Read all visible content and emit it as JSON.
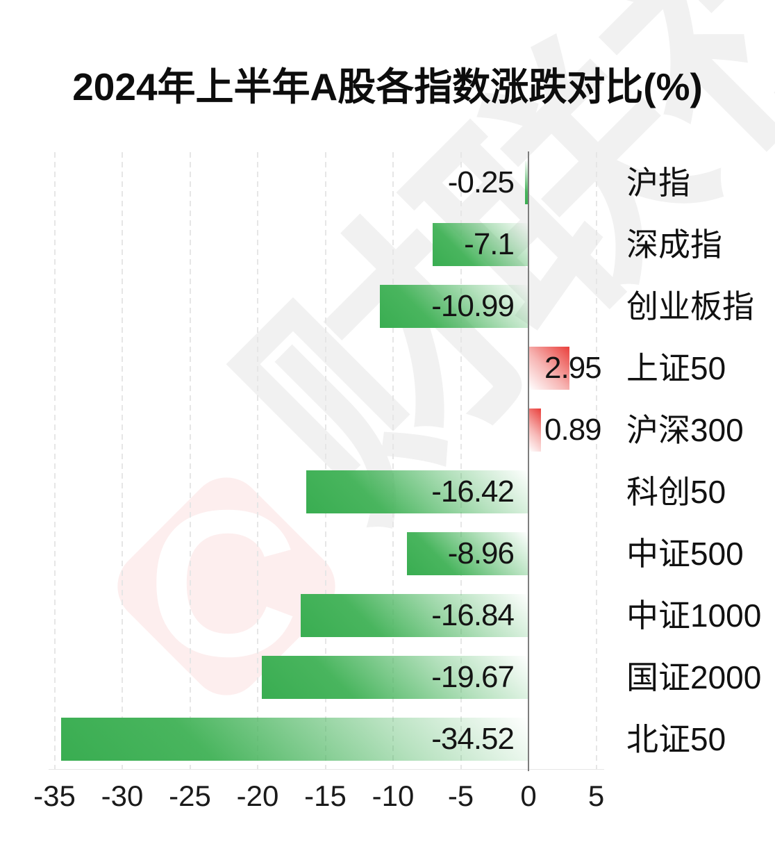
{
  "title": "2024年上半年A股各指数涨跌对比(%)",
  "watermark": {
    "logo_letter": "C",
    "brand": "财联社"
  },
  "chart_data": {
    "type": "bar",
    "orientation": "horizontal",
    "title": "2024年上半年A股各指数涨跌对比(%)",
    "categories": [
      "沪指",
      "深成指",
      "创业板指",
      "上证50",
      "沪深300",
      "科创50",
      "中证500",
      "中证1000",
      "国证2000",
      "北证50"
    ],
    "values": [
      -0.25,
      -7.1,
      -10.99,
      2.95,
      0.89,
      -16.42,
      -8.96,
      -16.84,
      -19.67,
      -34.52
    ],
    "value_labels": [
      "-0.25",
      "-7.1",
      "-10.99",
      "2.95",
      "0.89",
      "-16.42",
      "-8.96",
      "-16.84",
      "-19.67",
      "-34.52"
    ],
    "x_ticks": [
      -35,
      -30,
      -25,
      -20,
      -15,
      -10,
      -5,
      0,
      5
    ],
    "x_tick_labels": [
      "-35",
      "-30",
      "-25",
      "-20",
      "-15",
      "-10",
      "-5",
      "0",
      "5"
    ],
    "xlim": [
      -36.5,
      7.5
    ],
    "grid": "dashed-vertical",
    "legend": "none",
    "colors": {
      "negative_bar": "#3cae52",
      "positive_bar": "#e93f3b",
      "zero_line": "#7d7d7d",
      "gridline": "#e6e6e6",
      "label_text": "#141414"
    }
  }
}
